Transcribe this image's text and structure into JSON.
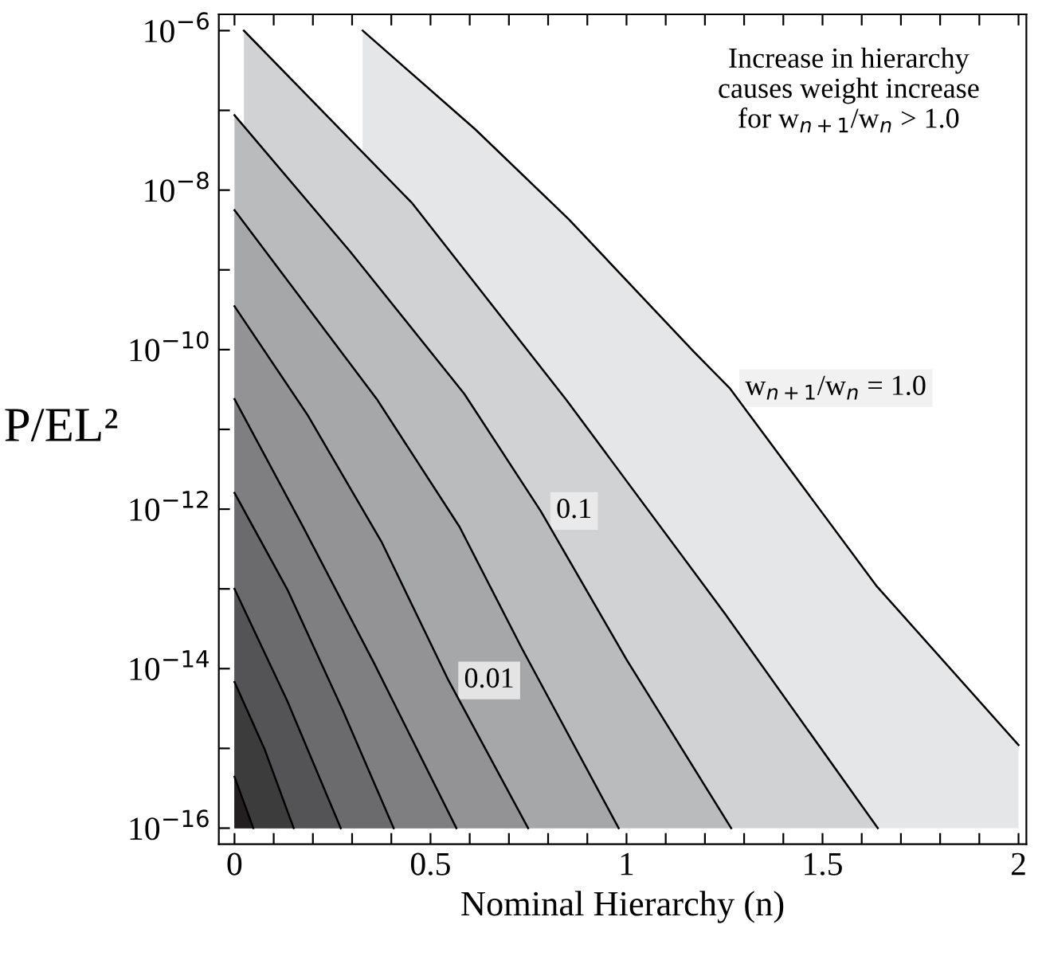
{
  "chart_data": {
    "type": "area",
    "xlabel": "Nominal Hierarchy (n)",
    "ylabel": "P/EL²",
    "log": "y",
    "xlim": [
      -0.04,
      2.02
    ],
    "ylim": [
      6.3e-17,
      1.6e-06
    ],
    "xticks": [
      0,
      {
        "value": 0.1,
        "label": null
      },
      {
        "value": 0.2,
        "label": null
      },
      {
        "value": 0.3,
        "label": null
      },
      {
        "value": 0.4,
        "label": null
      },
      0.5,
      {
        "value": 0.6,
        "label": null
      },
      {
        "value": 0.7,
        "label": null
      },
      {
        "value": 0.8,
        "label": null
      },
      {
        "value": 0.9,
        "label": null
      },
      1,
      {
        "value": 1.1,
        "label": null
      },
      {
        "value": 1.2,
        "label": null
      },
      {
        "value": 1.3,
        "label": null
      },
      {
        "value": 1.4,
        "label": null
      },
      1.5,
      {
        "value": 1.6,
        "label": null
      },
      {
        "value": 1.7,
        "label": null
      },
      {
        "value": 1.8,
        "label": null
      },
      {
        "value": 1.9,
        "label": null
      },
      2
    ],
    "yticks": [
      {
        "value": 1e-16,
        "label": "10$^{−16}$"
      },
      {
        "value": 1e-15,
        "label": null
      },
      {
        "value": 1e-14,
        "label": "10$^{−14}$"
      },
      {
        "value": 1e-13,
        "label": null
      },
      {
        "value": 1e-12,
        "label": "10$^{−12}$"
      },
      {
        "value": 1e-11,
        "label": null
      },
      {
        "value": 1e-10,
        "label": "10$^{−10}$"
      },
      {
        "value": 1e-09,
        "label": null
      },
      {
        "value": 1e-08,
        "label": "10$^{−8}$"
      },
      {
        "value": 1e-07,
        "label": null
      },
      {
        "value": 1e-06,
        "label": "10$^{−6}$"
      }
    ],
    "grid": false,
    "legend": false,
    "line_style": "solid",
    "marker": "none",
    "annotations": [
      "Increase in hierarchy\ncauses weight increase\nfor w$_{n+1}$/w$_{n}$ > 1.0"
    ],
    "series": [
      {
        "color": "#231f20",
        "x": [
          0,
          0.048
        ],
        "values": [
          4.4e-16,
          1e-16
        ]
      },
      {
        "color": "#3c3c3c",
        "x": [
          0,
          0.076,
          0.151
        ],
        "values": [
          6.8e-15,
          1e-15,
          1e-16
        ]
      },
      {
        "color": "#545456",
        "x": [
          0,
          0.135,
          0.271
        ],
        "values": [
          1e-13,
          3.9e-15,
          1e-16
        ]
      },
      {
        "color": "#6b6b6d",
        "x": [
          0,
          0.135,
          0.275,
          0.406
        ],
        "values": [
          1.6e-12,
          9.8e-14,
          3.1e-15,
          1e-16
        ]
      },
      {
        "color": "#7f7f81",
        "x": [
          0,
          0.175,
          0.355,
          0.566
        ],
        "values": [
          2.4e-11,
          6e-13,
          1.2e-14,
          1e-16
        ]
      },
      {
        "name": "0.01",
        "color": "#939395",
        "x": [
          0,
          0.187,
          0.375,
          0.546,
          0.749
        ],
        "values": [
          3.5e-10,
          1.5e-11,
          3.9e-13,
          7.1e-15,
          1e-16
        ]
      },
      {
        "color": "#a6a7a9",
        "x": [
          0,
          0.363,
          0.574,
          0.733,
          0.98
        ],
        "values": [
          5.6e-09,
          2.4e-11,
          6e-13,
          1.8e-14,
          1e-16
        ]
      },
      {
        "name": "0.1",
        "color": "#babbbd",
        "x": [
          0,
          0.295,
          0.586,
          0.781,
          1.0,
          1.267
        ],
        "values": [
          8.7e-08,
          1.7e-09,
          2.8e-11,
          9.5e-13,
          1.3e-14,
          1e-16
        ]
      },
      {
        "color": "#d1d2d4",
        "x": [
          0.024,
          0.454,
          0.845,
          1.251,
          1.641
        ],
        "values": [
          1e-06,
          6.8e-09,
          2.4e-11,
          4.9e-14,
          1e-16
        ]
      },
      {
        "name": "w$_{n+1}$/w$_{n}$ = 1.0",
        "color": "#e5e6e7",
        "x": [
          0.327,
          0.614,
          0.853,
          1.171,
          1.263,
          1.637,
          2.0
        ],
        "values": [
          1e-06,
          5.8e-08,
          4.3e-09,
          9.5e-11,
          3.3e-11,
          1.1e-13,
          1.1e-15
        ]
      }
    ]
  }
}
